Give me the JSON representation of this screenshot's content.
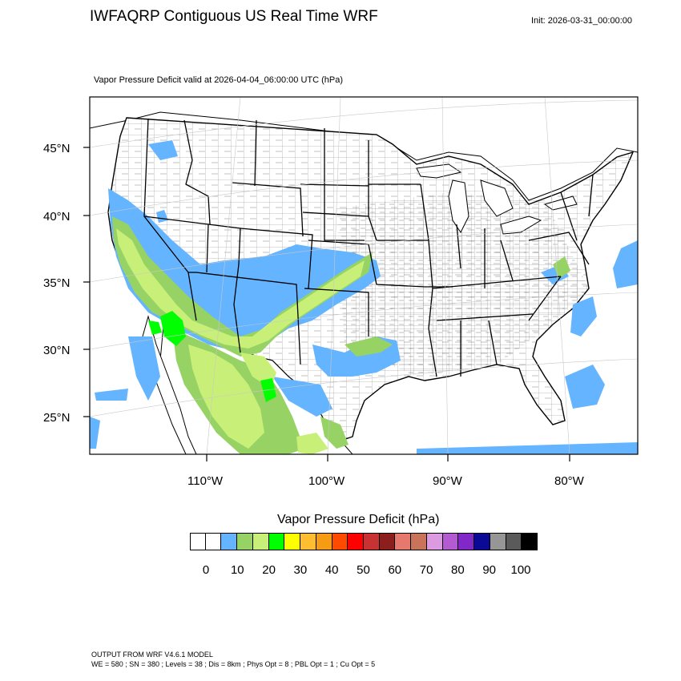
{
  "title": "IWFAQRP Contiguous US Real Time WRF",
  "init": "Init: 2026-03-31_00:00:00",
  "subtitle": "Vapor Pressure Deficit valid at 2026-04-04_06:00:00 UTC   (hPa)",
  "lat_labels": [
    "45°N",
    "40°N",
    "35°N",
    "30°N",
    "25°N"
  ],
  "lon_labels": [
    "110°W",
    "100°W",
    "90°W",
    "80°W"
  ],
  "colorbar": {
    "title": "Vapor Pressure Deficit  (hPa)",
    "colors": [
      "#ffffff",
      "#ffffff",
      "#64b4ff",
      "#96d264",
      "#c8f078",
      "#00ff00",
      "#ffff00",
      "#ffbe32",
      "#f59b14",
      "#ff4b00",
      "#ff0000",
      "#c83232",
      "#8c1e1e",
      "#e6786e",
      "#c8735a",
      "#dc9be1",
      "#b45ad2",
      "#8228c8",
      "#0a0a96",
      "#969696",
      "#5a5a5a",
      "#000000"
    ],
    "labels": [
      "0",
      "10",
      "20",
      "30",
      "40",
      "50",
      "60",
      "70",
      "80",
      "90",
      "100"
    ]
  },
  "footer": {
    "line1": "OUTPUT FROM WRF V4.6.1 MODEL",
    "line2": "WE = 580 ; SN = 380 ; Levels = 38 ; Dis = 8km ; Phys Opt = 8 ; PBL Opt = 1 ; Cu Opt = 5"
  }
}
